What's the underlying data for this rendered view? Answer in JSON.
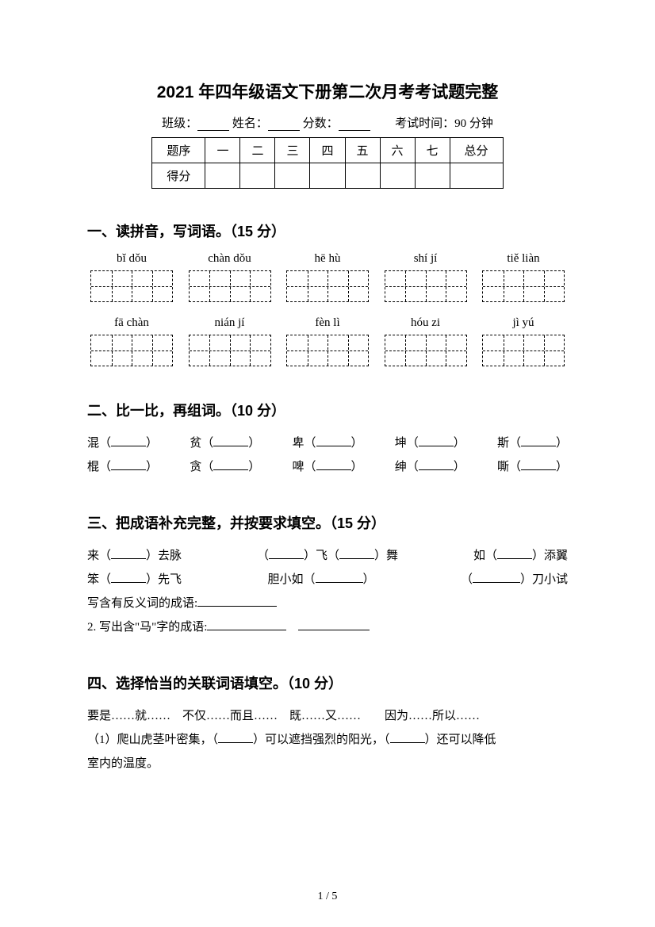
{
  "title": "2021 年四年级语文下册第二次月考考试题完整",
  "info": {
    "class_label": "班级：",
    "name_label": "姓名：",
    "score_label": "分数：",
    "time_label": "考试时间：90 分钟"
  },
  "score_table": {
    "headers": [
      "题序",
      "一",
      "二",
      "三",
      "四",
      "五",
      "六",
      "七",
      "总分"
    ],
    "row2_label": "得分"
  },
  "section1": {
    "heading": "一、读拼音，写词语。（15 分）",
    "row1_pinyin": [
      "bǐ dǒu",
      "chàn dǒu",
      "hē hù",
      "shí jí",
      "tiě liàn"
    ],
    "row2_pinyin": [
      "fā chàn",
      "nián jí",
      "fèn lì",
      "hóu zi",
      "jì yú"
    ]
  },
  "section2": {
    "heading": "二、比一比，再组词。（10 分）",
    "row1": [
      "混（",
      "）　贫（",
      "）　卑（",
      "）　坤（",
      "）　斯（",
      "）"
    ],
    "row2": [
      "棍（",
      "）　贪（",
      "）　啤（",
      "）　绅（",
      "）　嘶（",
      "）"
    ],
    "pairs_r1": [
      "混",
      "贫",
      "卑",
      "坤",
      "斯"
    ],
    "pairs_r2": [
      "棍",
      "贪",
      "啤",
      "绅",
      "嘶"
    ]
  },
  "section3": {
    "heading": "三、把成语补充完整，并按要求填空。（15 分）",
    "r1": {
      "a1": "来（",
      "a2": "）去脉",
      "b1": "（",
      "b2": "）飞（",
      "b3": "）舞",
      "c1": "如（",
      "c2": "）添翼"
    },
    "r2": {
      "a1": "笨（",
      "a2": "）先飞",
      "b1": "胆小如（",
      "b2": "）",
      "c1": "（",
      "c2": "）刀小试"
    },
    "line3": "写含有反义词的成语:",
    "line4": "2. 写出含\"马\"字的成语:"
  },
  "section4": {
    "heading": "四、选择恰当的关联词语填空。（10 分）",
    "options": "要是……就……　不仅……而且……　既……又……　　因为……所以……",
    "q1a": "（1）爬山虎茎叶密集，（",
    "q1b": "）可以遮挡强烈的阳光，（",
    "q1c": "）还可以降低",
    "q1d": "室内的温度。"
  },
  "footer": "1  /  5"
}
